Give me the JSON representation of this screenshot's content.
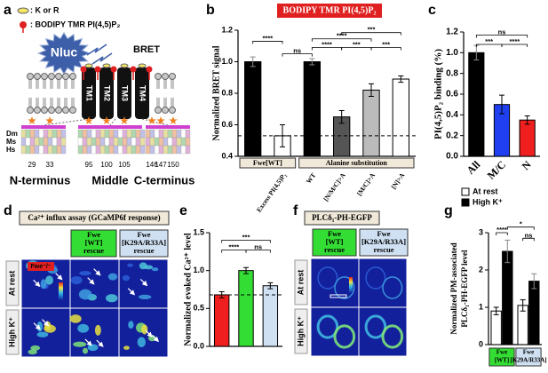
{
  "panel_labels": [
    "a",
    "b",
    "c",
    "d",
    "e",
    "f",
    "g"
  ],
  "diagram": {
    "legend": [
      ": K or R",
      ": BODIPY TMR PI(4,5)P₂"
    ],
    "nluc": "Nluc",
    "bret": "BRET",
    "tm": [
      "TM1",
      "TM2",
      "TM3",
      "TM4"
    ],
    "species": [
      "Dm",
      "Ms",
      "Hs"
    ],
    "positions": [
      29,
      33,
      95,
      100,
      105,
      146,
      147,
      150
    ],
    "regions": [
      "N-terminus",
      "Middle",
      "C-terminus"
    ]
  },
  "imaging_d": {
    "title": "Ca²⁺ influx assay (GCaMP6f response)",
    "mutant": "Fwe⁻/⁻",
    "columns": [
      [
        "Fwe",
        "[WT]",
        "rescue"
      ],
      [
        "Fwe",
        "[K29A/R33A]",
        "rescue"
      ]
    ],
    "rows": [
      "At rest",
      "High K⁺"
    ]
  },
  "imaging_f": {
    "title": "PLCδ₁-PH-EGFP",
    "columns": [
      [
        "Fwe",
        "[WT]",
        "rescue"
      ],
      [
        "Fwe",
        "[K29A/R33A]",
        "rescue"
      ]
    ],
    "rows": [
      "At rest",
      "High K⁺"
    ]
  },
  "chart_data": [
    {
      "type": "bar",
      "title": "BODIPY TMR PI(4,5)P₂",
      "y_label": "Normalized BRET signal",
      "categories": [
        null,
        "Excess PI(4,5)P₂",
        "WT",
        "[N/M/C]>A",
        "[M/C]>A",
        "[N]>A"
      ],
      "values": [
        1.0,
        0.53,
        1.0,
        0.65,
        0.82,
        0.89
      ],
      "errors": [
        0.03,
        0.07,
        0.02,
        0.04,
        0.04,
        0.02
      ],
      "colors": [
        "#000000",
        "#ffffff",
        "#000000",
        "#555555",
        "#bbbbbb",
        "#ffffff"
      ],
      "ylim": [
        0.4,
        1.2
      ],
      "yticks": [
        0.4,
        0.6,
        0.8,
        {
          "value": 1,
          "label": "1.0"
        },
        1.2
      ],
      "reference_line": 0.53,
      "group_labels": [
        "Fwe[WT]",
        "Alanine substitution"
      ],
      "annotations": [
        "****",
        "ns",
        "****",
        "***",
        "***",
        "****",
        "***"
      ]
    },
    {
      "type": "bar",
      "y_label": "PI(4,5)P₂ binding (%)",
      "categories": [
        "All",
        "M/C",
        "N"
      ],
      "values": [
        1.0,
        0.5,
        0.35
      ],
      "errors": [
        0.07,
        0.09,
        0.04
      ],
      "colors": [
        "#000000",
        "#1f3ff0",
        "#f01f1f"
      ],
      "ylim": [
        0,
        1.2
      ],
      "yticks": [
        {
          "value": 0,
          "label": "0.0"
        },
        0.2,
        0.4,
        0.6,
        0.8,
        {
          "value": 1,
          "label": "1.0"
        },
        1.2
      ],
      "annotations": [
        "ns",
        "***",
        "****"
      ]
    },
    {
      "type": "bar",
      "y_label": "Normalized evoked Ca²⁺ level",
      "categories": [
        null,
        null,
        null
      ],
      "values": [
        0.68,
        1.0,
        0.8
      ],
      "errors": [
        0.04,
        0.04,
        0.04
      ],
      "colors": [
        "#f01f1f",
        "#33dd33",
        "#cfe0f2"
      ],
      "ylim": [
        0,
        1.5
      ],
      "yticks": [
        {
          "value": 0,
          "label": "0.0"
        },
        0.5,
        {
          "value": 1,
          "label": "1.0"
        },
        1.5
      ],
      "reference_line": 0.68,
      "annotations": [
        "***",
        "****",
        "ns"
      ]
    },
    {
      "type": "bar",
      "y_label": [
        "Normalized  PM-associated",
        "PLCδ₁-PH-EGFP level"
      ],
      "categories": [
        [
          "Fwe",
          "[WT]"
        ],
        [
          "Fwe",
          "[K29A/R33A]"
        ]
      ],
      "category_colors": [
        "#33dd33",
        "#cfe0f2"
      ],
      "series": [
        {
          "name": "At rest",
          "color": "#ffffff",
          "values": [
            0.9,
            1.05
          ],
          "errors": [
            0.1,
            0.15
          ]
        },
        {
          "name": "High K⁺",
          "color": "#000000",
          "values": [
            2.5,
            1.7
          ],
          "errors": [
            0.3,
            0.2
          ]
        }
      ],
      "ylim": [
        0,
        3
      ],
      "yticks": [
        0,
        1,
        2,
        3
      ],
      "annotations": [
        "****",
        "*",
        "ns"
      ]
    }
  ]
}
